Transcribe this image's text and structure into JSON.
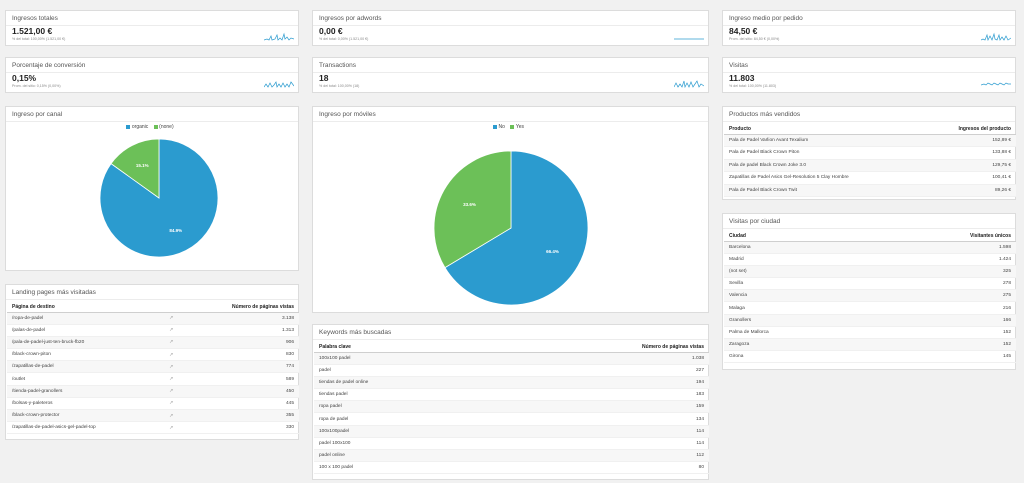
{
  "colors": {
    "accent": "#2b9bcf",
    "pie_blue": "#2b9bcf",
    "pie_green": "#6cc058",
    "card_border": "#dcdcdc",
    "background": "#f1f1f1"
  },
  "kpis": {
    "ingresos_totales": {
      "title": "Ingresos totales",
      "value": "1.521,00 €",
      "sub": "% del total: 100,00% (1.521,00 €)"
    },
    "ingresos_adwords": {
      "title": "Ingresos por adwords",
      "value": "0,00 €",
      "sub": "% del total: 0,00% (1.521,00 €)"
    },
    "ingreso_medio": {
      "title": "Ingreso medio por pedido",
      "value": "84,50 €",
      "sub": "Prom. del sitio: 84,50 € (0,00%)"
    },
    "conversion": {
      "title": "Porcentaje de conversión",
      "value": "0,15%",
      "sub": "Prom. del sitio: 0,15% (0,00%)"
    },
    "transactions": {
      "title": "Transactions",
      "value": "18",
      "sub": "% del total: 100,00% (18)"
    },
    "visitas": {
      "title": "Visitas",
      "value": "11.803",
      "sub": "% del total: 100,00% (11.803)"
    }
  },
  "canal": {
    "title": "Ingreso por canal",
    "legend": [
      {
        "label": "organic",
        "color": "#2b9bcf"
      },
      {
        "label": "(none)",
        "color": "#6cc058"
      }
    ],
    "slices": [
      {
        "label": "organic",
        "value": 84.9,
        "text": "84.9%",
        "color": "#2b9bcf"
      },
      {
        "label": "(none)",
        "value": 15.1,
        "text": "15.1%",
        "color": "#6cc058"
      }
    ]
  },
  "moviles": {
    "title": "Ingreso por móviles",
    "legend": [
      {
        "label": "No",
        "color": "#2b9bcf"
      },
      {
        "label": "Yes",
        "color": "#6cc058"
      }
    ],
    "slices": [
      {
        "label": "No",
        "value": 66.4,
        "text": "66.4%",
        "color": "#2b9bcf"
      },
      {
        "label": "Yes",
        "value": 33.6,
        "text": "33.6%",
        "color": "#6cc058"
      }
    ]
  },
  "productos": {
    "title": "Productos más vendidos",
    "col1": "Producto",
    "col2": "Ingresos del producto",
    "rows": [
      [
        "Pala de Padel Varlion Avant Texalium",
        "152,89 €"
      ],
      [
        "Pala de Padel Black Crown Piton",
        "133,88 €"
      ],
      [
        "Pala de padel Black Crown Joke 3.0",
        "129,75 €"
      ],
      [
        "Zapatillas de Padel Asics Gel-Resolution 5 Clay Hombre",
        "100,41 €"
      ],
      [
        "Pala de Padel Black Crown Twit",
        "89,26 €"
      ]
    ]
  },
  "ciudad": {
    "title": "Visitas por ciudad",
    "col1": "Ciudad",
    "col2": "Visitantes únicos",
    "rows": [
      [
        "Barcelona",
        "1.598"
      ],
      [
        "Madrid",
        "1.424"
      ],
      [
        "(not set)",
        "325"
      ],
      [
        "Sevilla",
        "278"
      ],
      [
        "Valencia",
        "275"
      ],
      [
        "Malaga",
        "216"
      ],
      [
        "Granollers",
        "166"
      ],
      [
        "Palma de Mallorca",
        "152"
      ],
      [
        "Zaragoza",
        "152"
      ],
      [
        "Girona",
        "145"
      ]
    ]
  },
  "landing": {
    "title": "Landing pages más visitadas",
    "col1": "Página de destino",
    "col2": "Número de páginas vistas",
    "rows": [
      [
        "/ropa-de-padel",
        "3.138"
      ],
      [
        "/palas-de-padel",
        "1.313"
      ],
      [
        "/pala-de-padel-just-ten-bruck-fb20",
        "906"
      ],
      [
        "/black-crown-piton",
        "830"
      ],
      [
        "/zapatillas-de-padel",
        "774"
      ],
      [
        "/outlet",
        "589"
      ],
      [
        "/tienda-padel-granollers",
        "450"
      ],
      [
        "/bolsas-y-paleteros",
        "445"
      ],
      [
        "/black-crown-protector",
        "355"
      ],
      [
        "/zapatillas-de-padel-asics-gel-padel-top",
        "330"
      ]
    ]
  },
  "keywords": {
    "title": "Keywords más buscadas",
    "col1": "Palabra clave",
    "col2": "Número de páginas vistas",
    "rows": [
      [
        "100x100 padel",
        "1.038"
      ],
      [
        "padel",
        "227"
      ],
      [
        "tiendas de padel online",
        "194"
      ],
      [
        "tiendas padel",
        "183"
      ],
      [
        "ropa padel",
        "159"
      ],
      [
        "ropa de padel",
        "134"
      ],
      [
        "100x100padel",
        "114"
      ],
      [
        "padel 100x100",
        "114"
      ],
      [
        "padel online",
        "112"
      ],
      [
        "100 x 100 padel",
        "80"
      ]
    ]
  }
}
